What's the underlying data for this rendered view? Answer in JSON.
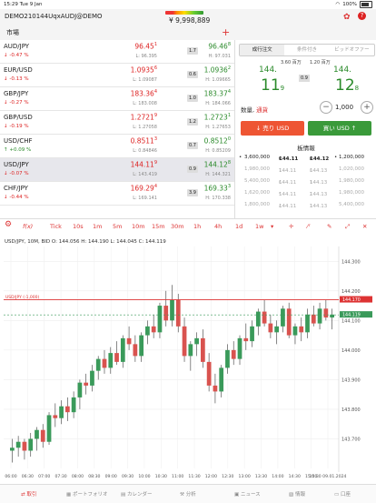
{
  "status_bar": {
    "time": "15:29",
    "date": "Tue 9 Jan",
    "battery": "100%"
  },
  "account": {
    "id": "DEMO210144UqxAUDJ@DEMO",
    "balance": "¥ 9,998,889"
  },
  "market_header": {
    "title": "市場",
    "add_icon": "plus-icon"
  },
  "quotes": [
    {
      "symbol": "AUD/JPY",
      "change": "-0.47 %",
      "dir": "neg",
      "bid": "96.45",
      "bid_sup": "1",
      "ask": "96.46",
      "ask_sup": "8",
      "low": "L: 96.395",
      "high": "H: 97.031",
      "spread": "1.7",
      "selected": false
    },
    {
      "symbol": "EUR/USD",
      "change": "-0.13 %",
      "dir": "neg",
      "bid": "1.0935",
      "bid_sup": "6",
      "ask": "1.0936",
      "ask_sup": "2",
      "low": "L: 1.09087",
      "high": "H: 1.09665",
      "spread": "0.6",
      "selected": false
    },
    {
      "symbol": "GBP/JPY",
      "change": "-0.27 %",
      "dir": "neg",
      "bid": "183.36",
      "bid_sup": "4",
      "ask": "183.37",
      "ask_sup": "4",
      "low": "L: 183.008",
      "high": "H: 184.066",
      "spread": "1.0",
      "selected": false
    },
    {
      "symbol": "GBP/USD",
      "change": "-0.19 %",
      "dir": "neg",
      "bid": "1.2721",
      "bid_sup": "9",
      "ask": "1.2723",
      "ask_sup": "1",
      "low": "L: 1.27058",
      "high": "H: 1.27653",
      "spread": "1.2",
      "selected": false
    },
    {
      "symbol": "USD/CHF",
      "change": "+0.09 %",
      "dir": "pos",
      "bid": "0.8511",
      "bid_sup": "3",
      "ask": "0.8512",
      "ask_sup": "0",
      "low": "L: 0.84846",
      "high": "H: 0.85209",
      "spread": "0.7",
      "selected": false
    },
    {
      "symbol": "USD/JPY",
      "change": "-0.07 %",
      "dir": "neg",
      "bid": "144.11",
      "bid_sup": "9",
      "ask": "144.12",
      "ask_sup": "8",
      "low": "L: 143.419",
      "high": "H: 144.321",
      "spread": "0.9",
      "selected": true
    },
    {
      "symbol": "CHF/JPY",
      "change": "-0.44 %",
      "dir": "neg",
      "bid": "169.29",
      "bid_sup": "4",
      "ask": "169.33",
      "ask_sup": "3",
      "low": "L: 169.141",
      "high": "H: 170.338",
      "spread": "3.9",
      "selected": false
    }
  ],
  "order_panel": {
    "tabs": [
      "成行注文",
      "条件付き",
      "ビッドオファー"
    ],
    "sell_lots": "3.60 百万",
    "buy_lots": "1.20 百万",
    "sell_price_small": "144.",
    "sell_price_big": "11",
    "sell_price_sup": "9",
    "buy_price_small": "144.",
    "buy_price_big": "12",
    "buy_price_sup": "8",
    "spread": "0.9",
    "qty_label": "数量, ",
    "qty_unit": "通貨",
    "qty_value": "1,000",
    "sell_button": "売り USD",
    "buy_button": "買い USD",
    "book_title": "板情報",
    "book": [
      [
        "3,600,000",
        "144.11",
        "9",
        "144.12",
        "8",
        "1,200,000"
      ],
      [
        "1,980,000",
        "144.11",
        "7",
        "144.13",
        "0",
        "1,020,000"
      ],
      [
        "5,400,000",
        "144.11",
        "6",
        "144.13",
        "1",
        "1,980,000"
      ],
      [
        "1,620,000",
        "144.11",
        "5",
        "144.13",
        "2",
        "1,980,000"
      ],
      [
        "1,800,000",
        "144.11",
        "4",
        "144.13",
        "3",
        "5,400,000"
      ]
    ]
  },
  "toolbar": {
    "items": [
      "Tick",
      "10s",
      "1m",
      "5m",
      "10m",
      "15m",
      "30m",
      "1h",
      "4h",
      "1d",
      "1w"
    ],
    "fx_label": "f(x)"
  },
  "chart_data": {
    "type": "candlestick",
    "info": "USD/JPY, 10M, BID  O: 144.056 H: 144.190 L: 144.045 C: 144.119",
    "ylim": [
      143.6,
      144.35
    ],
    "yticks": [
      "144.300",
      "144.200",
      "144.100",
      "144.000",
      "143.900",
      "143.800",
      "143.700"
    ],
    "xticks": [
      "06:00",
      "06:30",
      "07:00",
      "07:30",
      "08:00",
      "08:30",
      "09:00",
      "09:30",
      "10:00",
      "10:30",
      "11:00",
      "11:30",
      "12:00",
      "12:30",
      "13:00",
      "13:30",
      "14:00",
      "14:30",
      "15:00",
      "15:30 09.01.2024"
    ],
    "current_price": "144.119",
    "current_price_label": "144.119",
    "position_line": {
      "price": 144.17,
      "label": "USD/JPY  (-1,000)",
      "tag": "144.170"
    },
    "ohlc": [
      [
        143.66,
        143.7,
        143.62,
        143.67
      ],
      [
        143.67,
        143.71,
        143.64,
        143.69
      ],
      [
        143.69,
        143.7,
        143.63,
        143.66
      ],
      [
        143.66,
        143.72,
        143.64,
        143.7
      ],
      [
        143.7,
        143.74,
        143.66,
        143.73
      ],
      [
        143.73,
        143.75,
        143.67,
        143.69
      ],
      [
        143.69,
        143.79,
        143.68,
        143.78
      ],
      [
        143.78,
        143.82,
        143.74,
        143.77
      ],
      [
        143.77,
        143.83,
        143.75,
        143.81
      ],
      [
        143.81,
        143.84,
        143.76,
        143.79
      ],
      [
        143.79,
        143.86,
        143.77,
        143.84
      ],
      [
        143.84,
        143.9,
        143.8,
        143.89
      ],
      [
        143.89,
        143.92,
        143.85,
        143.88
      ],
      [
        143.88,
        143.95,
        143.86,
        143.93
      ],
      [
        143.93,
        143.98,
        143.9,
        143.97
      ],
      [
        143.97,
        144.0,
        143.92,
        143.94
      ],
      [
        143.94,
        144.01,
        143.92,
        143.99
      ],
      [
        143.99,
        144.03,
        143.95,
        143.96
      ],
      [
        143.96,
        144.05,
        143.94,
        144.04
      ],
      [
        144.04,
        144.08,
        144.0,
        144.02
      ],
      [
        144.02,
        144.05,
        143.96,
        143.98
      ],
      [
        143.98,
        144.06,
        143.96,
        144.05
      ],
      [
        144.05,
        144.1,
        144.02,
        144.08
      ],
      [
        144.08,
        144.12,
        144.04,
        144.06
      ],
      [
        144.06,
        144.16,
        144.04,
        144.15
      ],
      [
        144.15,
        144.2,
        144.08,
        144.1
      ],
      [
        144.1,
        144.22,
        144.08,
        144.17
      ],
      [
        144.17,
        144.19,
        144.06,
        144.08
      ],
      [
        144.08,
        144.11,
        143.96,
        143.98
      ],
      [
        143.98,
        144.03,
        143.93,
        144.02
      ],
      [
        144.02,
        144.06,
        143.98,
        144.04
      ],
      [
        144.04,
        144.07,
        143.94,
        143.96
      ],
      [
        143.96,
        143.99,
        143.86,
        143.88
      ],
      [
        143.88,
        143.92,
        143.82,
        143.86
      ],
      [
        143.86,
        143.95,
        143.84,
        143.94
      ],
      [
        143.94,
        144.02,
        143.92,
        144.0
      ],
      [
        144.0,
        144.03,
        143.95,
        143.97
      ],
      [
        143.97,
        144.05,
        143.95,
        144.04
      ],
      [
        144.04,
        144.09,
        144.0,
        144.03
      ],
      [
        144.03,
        144.1,
        144.01,
        144.08
      ],
      [
        144.08,
        144.14,
        144.05,
        144.13
      ],
      [
        144.13,
        144.17,
        144.08,
        144.09
      ],
      [
        144.09,
        144.12,
        144.04,
        144.06
      ],
      [
        144.06,
        144.1,
        144.02,
        144.08
      ],
      [
        144.08,
        144.15,
        144.06,
        144.14
      ],
      [
        144.14,
        144.16,
        144.04,
        144.05
      ],
      [
        144.05,
        144.09,
        144.02,
        144.08
      ],
      [
        144.08,
        144.11,
        144.03,
        144.06
      ],
      [
        144.06,
        144.14,
        144.04,
        144.12
      ],
      [
        144.12,
        144.15,
        144.08,
        144.09
      ],
      [
        144.09,
        144.16,
        144.07,
        144.14
      ],
      [
        144.14,
        144.17,
        144.1,
        144.11
      ],
      [
        144.11,
        144.14,
        144.07,
        144.12
      ]
    ]
  },
  "tabs": [
    "取引",
    "ポートフォリオ",
    "カレンダー",
    "分析",
    "ニュース",
    "情報",
    "口座"
  ]
}
